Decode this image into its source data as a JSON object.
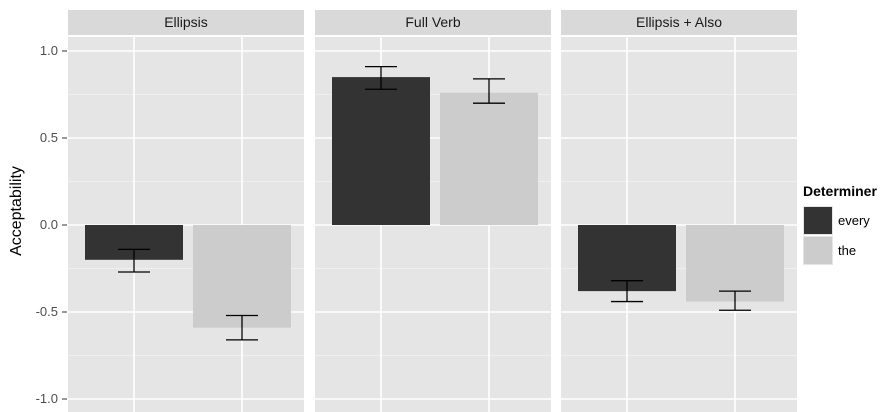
{
  "chart_data": {
    "type": "bar",
    "ylabel": "Acceptability",
    "ylim": [
      -1.0,
      1.0
    ],
    "yticks": [
      1.0,
      0.5,
      0.0,
      -0.5,
      -1.0
    ],
    "ytick_labels": [
      "1.0",
      "0.5",
      "0.0",
      "-0.5",
      "-1.0"
    ],
    "grid": true,
    "legend_placement": "right",
    "legend_title": "Determiner",
    "series": [
      {
        "name": "every",
        "color": "#333333"
      },
      {
        "name": "the",
        "color": "#cccccc"
      }
    ],
    "panels": [
      {
        "title": "Ellipsis",
        "values": [
          -0.2,
          -0.59
        ],
        "error_low": [
          -0.27,
          -0.66
        ],
        "error_high": [
          -0.14,
          -0.52
        ]
      },
      {
        "title": "Full Verb",
        "values": [
          0.85,
          0.76
        ],
        "error_low": [
          0.78,
          0.7
        ],
        "error_high": [
          0.91,
          0.84
        ]
      },
      {
        "title": "Ellipsis + Also",
        "values": [
          -0.38,
          -0.44
        ],
        "error_low": [
          -0.44,
          -0.49
        ],
        "error_high": [
          -0.32,
          -0.38
        ]
      }
    ]
  }
}
